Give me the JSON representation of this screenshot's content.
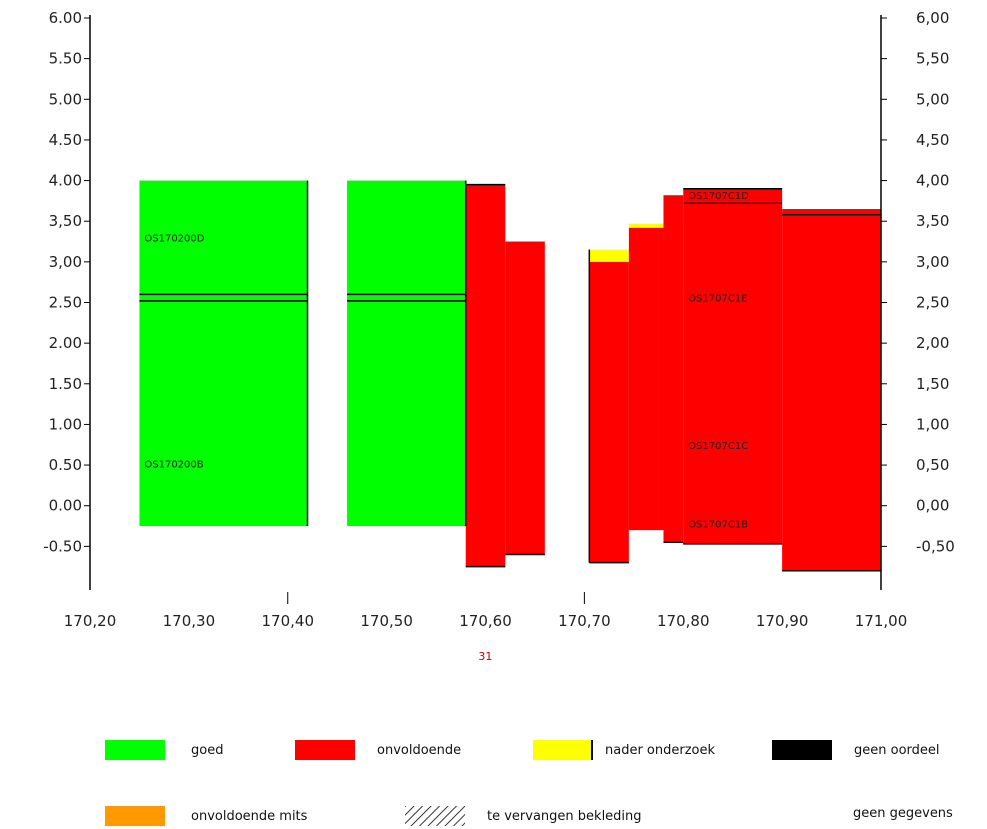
{
  "chart_data": {
    "type": "bar",
    "title": "",
    "xlabel": "",
    "ylabel": "",
    "x_ticks": [
      "170,20",
      "170,30",
      "170,40",
      "170,50",
      "170,60",
      "170,70",
      "170,80",
      "170,90",
      "171,00"
    ],
    "x_tick_values": [
      170.2,
      170.3,
      170.4,
      170.5,
      170.6,
      170.7,
      170.8,
      170.9,
      171.0
    ],
    "y_ticks_left": [
      "6.00",
      "5.50",
      "5.00",
      "4.50",
      "4.00",
      "3,50",
      "3,00",
      "2.50",
      "2.00",
      "1.50",
      "1.00",
      "0.50",
      "0.00",
      "-0.50"
    ],
    "y_ticks_right": [
      "6,00",
      "5,50",
      "5,00",
      "4,50",
      "4,00",
      "3,50",
      "3,00",
      "2,50",
      "2,00",
      "1,50",
      "1,00",
      "0,50",
      "0,00",
      "-0,50"
    ],
    "y_tick_values": [
      6.0,
      5.5,
      5.0,
      4.5,
      4.0,
      3.5,
      3.0,
      2.5,
      2.0,
      1.5,
      1.0,
      0.5,
      0.0,
      -0.5
    ],
    "xlim": [
      170.2,
      171.0
    ],
    "ylim": [
      -1.0,
      6.0
    ],
    "grid": false,
    "marker_label": "31",
    "marker_x": 170.7,
    "blocks": [
      {
        "x0": 170.25,
        "x1": 170.42,
        "y0": -0.25,
        "y1": 4.0,
        "status": "goed"
      },
      {
        "x0": 170.46,
        "x1": 170.58,
        "y0": -0.25,
        "y1": 4.0,
        "status": "goed"
      },
      {
        "x0": 170.58,
        "x1": 170.62,
        "y0": -0.75,
        "y1": 3.95,
        "status": "onvoldoende"
      },
      {
        "x0": 170.62,
        "x1": 170.66,
        "y0": -0.6,
        "y1": 3.25,
        "status": "onvoldoende"
      },
      {
        "x0": 170.705,
        "x1": 170.745,
        "y0": -0.7,
        "y1": 3.0,
        "status": "onvoldoende"
      },
      {
        "x0": 170.705,
        "x1": 170.745,
        "y0": 3.0,
        "y1": 3.15,
        "status": "nader onderzoek"
      },
      {
        "x0": 170.745,
        "x1": 170.78,
        "y0": -0.3,
        "y1": 3.42,
        "status": "onvoldoende"
      },
      {
        "x0": 170.745,
        "x1": 170.78,
        "y0": 3.42,
        "y1": 3.47,
        "status": "nader onderzoek"
      },
      {
        "x0": 170.78,
        "x1": 170.8,
        "y0": -0.45,
        "y1": 3.82,
        "status": "onvoldoende"
      },
      {
        "x0": 170.8,
        "x1": 170.9,
        "y0": -0.47,
        "y1": 3.9,
        "status": "onvoldoende"
      },
      {
        "x0": 170.9,
        "x1": 171.0,
        "y0": -0.8,
        "y1": 3.65,
        "status": "onvoldoende"
      }
    ],
    "lines": [
      {
        "x0": 170.25,
        "x1": 170.42,
        "y": 2.6,
        "status": "geen oordeel"
      },
      {
        "x0": 170.25,
        "x1": 170.42,
        "y": 2.52,
        "status": "geen oordeel"
      },
      {
        "x0": 170.46,
        "x1": 170.58,
        "y": 2.6,
        "status": "geen oordeel"
      },
      {
        "x0": 170.46,
        "x1": 170.58,
        "y": 2.52,
        "status": "geen oordeel"
      },
      {
        "x0": 170.8,
        "x1": 170.9,
        "y": 3.72,
        "status": "geen oordeel"
      },
      {
        "x0": 170.9,
        "x1": 171.0,
        "y": 3.58,
        "status": "geen oordeel"
      }
    ],
    "section_labels": [
      {
        "text": "OS170200D",
        "x": 170.255,
        "y": 3.3
      },
      {
        "text": "OS170200B",
        "x": 170.255,
        "y": 0.52
      },
      {
        "text": "OS1707C1D",
        "x": 170.805,
        "y": 3.82
      },
      {
        "text": "OS1707C1E",
        "x": 170.805,
        "y": 2.56
      },
      {
        "text": "OS1707C1C",
        "x": 170.805,
        "y": 0.75
      },
      {
        "text": "OS1707C1B",
        "x": 170.805,
        "y": -0.22
      }
    ]
  },
  "legend": {
    "items": [
      {
        "label": "goed",
        "color": "#00ff00",
        "kind": "solid"
      },
      {
        "label": "onvoldoende",
        "color": "#ff0000",
        "kind": "solid"
      },
      {
        "label": "nader onderzoek",
        "color": "#ffff00",
        "kind": "bar"
      },
      {
        "label": "geen oordeel",
        "color": "#000000",
        "kind": "solid"
      },
      {
        "label": "onvoldoende mits",
        "color": "#ff9900",
        "kind": "solid"
      },
      {
        "label": "te vervangen bekleding",
        "color": "#000000",
        "kind": "hatch"
      },
      {
        "label": "geen gegevens",
        "color": "#ffffff",
        "kind": "none"
      }
    ]
  },
  "colors": {
    "goed": "#00ff00",
    "onvoldoende": "#ff0000",
    "nader onderzoek": "#ffff00",
    "geen oordeel": "#000000",
    "onvoldoende mits": "#ff9900"
  }
}
